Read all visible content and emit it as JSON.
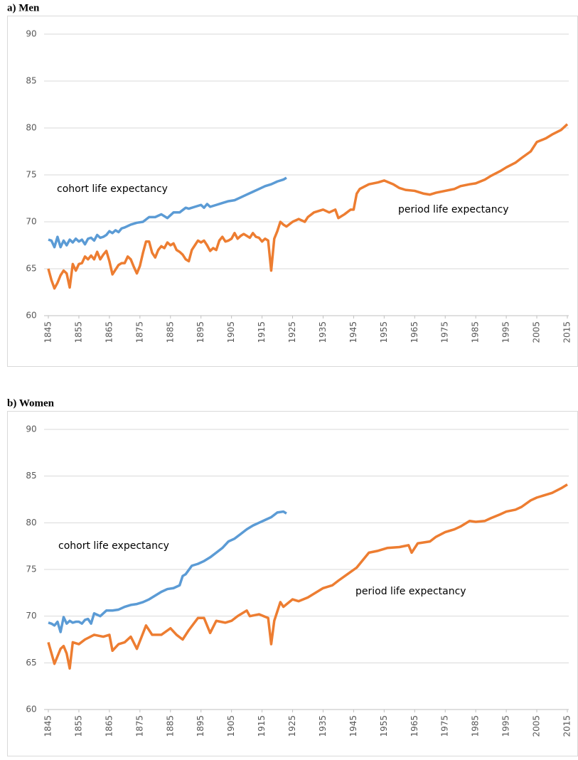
{
  "chart_data": [
    {
      "type": "line",
      "title": "a) Men",
      "xlim": [
        1845,
        2015
      ],
      "xticks": [
        1845,
        1855,
        1865,
        1875,
        1885,
        1895,
        1905,
        1915,
        1925,
        1935,
        1945,
        1955,
        1965,
        1975,
        1985,
        1995,
        2005,
        2015
      ],
      "ylim": [
        60,
        90
      ],
      "yticks": [
        60,
        65,
        70,
        75,
        80,
        85,
        90
      ],
      "grid": true,
      "series": [
        {
          "name": "cohort life expectancy",
          "color": "#5b9bd5",
          "x": [
            1845,
            1846,
            1847,
            1848,
            1849,
            1850,
            1851,
            1852,
            1853,
            1854,
            1855,
            1856,
            1857,
            1858,
            1859,
            1860,
            1861,
            1862,
            1863,
            1864,
            1865,
            1866,
            1867,
            1868,
            1869,
            1870,
            1872,
            1874,
            1876,
            1878,
            1880,
            1882,
            1884,
            1886,
            1888,
            1890,
            1891,
            1893,
            1895,
            1896,
            1897,
            1898,
            1900,
            1902,
            1904,
            1906,
            1908,
            1910,
            1912,
            1914,
            1916,
            1918,
            1920,
            1922,
            1923
          ],
          "values": [
            68.1,
            68.0,
            67.3,
            68.4,
            67.3,
            68.0,
            67.5,
            68.1,
            67.8,
            68.2,
            67.9,
            68.1,
            67.6,
            68.2,
            68.3,
            68.0,
            68.6,
            68.3,
            68.4,
            68.6,
            69.0,
            68.8,
            69.1,
            68.9,
            69.3,
            69.4,
            69.7,
            69.9,
            70.0,
            70.5,
            70.5,
            70.8,
            70.4,
            71.0,
            71.0,
            71.5,
            71.4,
            71.6,
            71.8,
            71.5,
            71.9,
            71.6,
            71.8,
            72.0,
            72.2,
            72.3,
            72.6,
            72.9,
            73.2,
            73.5,
            73.8,
            74.0,
            74.3,
            74.5,
            74.7
          ]
        },
        {
          "name": "period life expectancy",
          "color": "#ed7d31",
          "x": [
            1845,
            1846,
            1847,
            1848,
            1849,
            1850,
            1851,
            1852,
            1853,
            1854,
            1855,
            1856,
            1857,
            1858,
            1859,
            1860,
            1861,
            1862,
            1863,
            1864,
            1865,
            1866,
            1867,
            1868,
            1869,
            1870,
            1871,
            1872,
            1873,
            1874,
            1875,
            1876,
            1877,
            1878,
            1879,
            1880,
            1881,
            1882,
            1883,
            1884,
            1885,
            1886,
            1887,
            1888,
            1889,
            1890,
            1891,
            1892,
            1893,
            1894,
            1895,
            1896,
            1897,
            1898,
            1899,
            1900,
            1901,
            1902,
            1903,
            1904,
            1905,
            1906,
            1907,
            1908,
            1909,
            1910,
            1911,
            1912,
            1913,
            1914,
            1915,
            1916,
            1917,
            1918,
            1919,
            1920,
            1921,
            1922,
            1923,
            1925,
            1927,
            1929,
            1930,
            1932,
            1935,
            1937,
            1939,
            1940,
            1942,
            1944,
            1945,
            1946,
            1947,
            1950,
            1953,
            1955,
            1958,
            1960,
            1962,
            1965,
            1968,
            1970,
            1972,
            1975,
            1978,
            1980,
            1983,
            1985,
            1988,
            1990,
            1993,
            1995,
            1998,
            2000,
            2003,
            2005,
            2008,
            2010,
            2013,
            2015
          ],
          "values": [
            65.0,
            63.8,
            62.9,
            63.5,
            64.3,
            64.8,
            64.5,
            63.0,
            65.5,
            64.8,
            65.5,
            65.6,
            66.3,
            66.0,
            66.4,
            66.0,
            66.8,
            66.0,
            66.5,
            66.9,
            65.8,
            64.4,
            64.9,
            65.4,
            65.6,
            65.6,
            66.3,
            66.0,
            65.2,
            64.5,
            65.3,
            66.7,
            67.9,
            67.9,
            66.7,
            66.2,
            67.0,
            67.4,
            67.2,
            67.8,
            67.5,
            67.7,
            67.0,
            66.8,
            66.5,
            66.0,
            65.8,
            67.0,
            67.5,
            68.0,
            67.8,
            68.0,
            67.5,
            66.9,
            67.2,
            67.0,
            68.0,
            68.4,
            67.9,
            68.0,
            68.2,
            68.8,
            68.2,
            68.5,
            68.7,
            68.5,
            68.3,
            68.8,
            68.4,
            68.3,
            67.9,
            68.2,
            68.0,
            64.8,
            68.2,
            69.0,
            70.0,
            69.7,
            69.5,
            70.0,
            70.3,
            70.0,
            70.5,
            71.0,
            71.3,
            71.0,
            71.3,
            70.4,
            70.8,
            71.3,
            71.3,
            73.0,
            73.5,
            74.0,
            74.2,
            74.4,
            74.0,
            73.6,
            73.4,
            73.3,
            73.0,
            72.9,
            73.1,
            73.3,
            73.5,
            73.8,
            74.0,
            74.1,
            74.5,
            74.9,
            75.4,
            75.8,
            76.3,
            76.8,
            77.5,
            78.5,
            78.9,
            79.3,
            79.8,
            80.4
          ]
        }
      ]
    },
    {
      "type": "line",
      "title": "b) Women",
      "xlim": [
        1845,
        2015
      ],
      "xticks": [
        1845,
        1855,
        1865,
        1875,
        1885,
        1895,
        1905,
        1915,
        1925,
        1935,
        1945,
        1955,
        1965,
        1975,
        1985,
        1995,
        2005,
        2015
      ],
      "ylim": [
        60,
        90
      ],
      "yticks": [
        60,
        65,
        70,
        75,
        80,
        85,
        90
      ],
      "grid": true,
      "series": [
        {
          "name": "cohort life expectancy",
          "color": "#5b9bd5",
          "x": [
            1845,
            1846,
            1847,
            1848,
            1849,
            1850,
            1851,
            1852,
            1853,
            1854,
            1855,
            1856,
            1857,
            1858,
            1859,
            1860,
            1862,
            1864,
            1866,
            1868,
            1870,
            1872,
            1874,
            1876,
            1878,
            1880,
            1882,
            1884,
            1886,
            1888,
            1889,
            1890,
            1892,
            1894,
            1896,
            1898,
            1900,
            1902,
            1904,
            1906,
            1908,
            1910,
            1912,
            1914,
            1916,
            1918,
            1920,
            1922,
            1923
          ],
          "values": [
            69.3,
            69.2,
            69.0,
            69.4,
            68.3,
            69.9,
            69.2,
            69.5,
            69.3,
            69.4,
            69.4,
            69.2,
            69.6,
            69.7,
            69.2,
            70.3,
            70.0,
            70.6,
            70.6,
            70.7,
            71.0,
            71.2,
            71.3,
            71.5,
            71.8,
            72.2,
            72.6,
            72.9,
            73.0,
            73.3,
            74.3,
            74.5,
            75.4,
            75.6,
            75.9,
            76.3,
            76.8,
            77.3,
            78.0,
            78.3,
            78.8,
            79.3,
            79.7,
            80.0,
            80.3,
            80.6,
            81.1,
            81.2,
            81.0
          ]
        },
        {
          "name": "period life expectancy",
          "color": "#ed7d31",
          "x": [
            1845,
            1847,
            1849,
            1850,
            1851,
            1852,
            1853,
            1855,
            1857,
            1860,
            1863,
            1865,
            1866,
            1868,
            1870,
            1872,
            1874,
            1877,
            1879,
            1882,
            1885,
            1887,
            1889,
            1891,
            1894,
            1896,
            1898,
            1900,
            1903,
            1905,
            1907,
            1910,
            1911,
            1914,
            1917,
            1918,
            1919,
            1921,
            1922,
            1925,
            1927,
            1930,
            1933,
            1935,
            1938,
            1940,
            1943,
            1946,
            1948,
            1950,
            1953,
            1956,
            1960,
            1963,
            1964,
            1966,
            1970,
            1972,
            1975,
            1978,
            1980,
            1983,
            1985,
            1988,
            1990,
            1993,
            1995,
            1998,
            2000,
            2003,
            2005,
            2008,
            2010,
            2013,
            2015
          ],
          "values": [
            67.2,
            64.9,
            66.5,
            66.8,
            66.0,
            64.4,
            67.2,
            67.0,
            67.5,
            68.0,
            67.8,
            68.0,
            66.3,
            67.0,
            67.2,
            67.8,
            66.5,
            69.0,
            68.0,
            68.0,
            68.7,
            68.0,
            67.5,
            68.5,
            69.8,
            69.8,
            68.2,
            69.5,
            69.3,
            69.5,
            70.0,
            70.6,
            70.0,
            70.2,
            69.8,
            67.0,
            69.5,
            71.5,
            71.0,
            71.8,
            71.6,
            72.0,
            72.6,
            73.0,
            73.3,
            73.8,
            74.5,
            75.2,
            76.0,
            76.8,
            77.0,
            77.3,
            77.4,
            77.6,
            76.8,
            77.8,
            78.0,
            78.5,
            79.0,
            79.3,
            79.6,
            80.2,
            80.1,
            80.2,
            80.5,
            80.9,
            81.2,
            81.4,
            81.7,
            82.4,
            82.7,
            83.0,
            83.2,
            83.7,
            84.1
          ]
        }
      ]
    }
  ]
}
